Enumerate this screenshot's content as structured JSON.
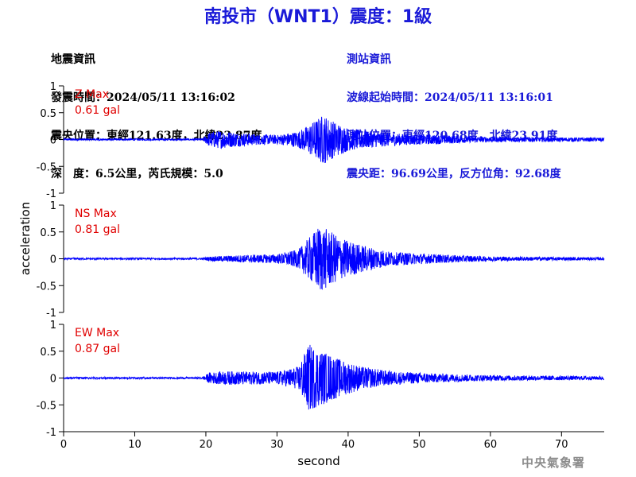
{
  "title": "南投市（WNT1）震度：1級",
  "info_left": {
    "heading": "地震資訊",
    "time": "發震時間：2024/05/11 13:16:02",
    "epicenter": "震央位置：東經121.63度，北緯23.87度",
    "depth_magnitude": "深　度：6.5公里，芮氏規模：5.0"
  },
  "info_right": {
    "heading": "測站資訊",
    "wave_start": "波線起始時間：2024/05/11 13:16:01",
    "station": "測站位置：東經120.68度，北緯23.91度",
    "distance": "震央距：96.69公里，反方位角：92.68度"
  },
  "agency": "中央氣象署",
  "colors": {
    "title": "#1a1ad8",
    "trace": "#0000ff",
    "max_label": "#e00000",
    "axis": "#000000"
  },
  "chart_data": {
    "type": "line",
    "xlabel": "second",
    "ylabel": "acceleration",
    "xlim": [
      0,
      76
    ],
    "ylim": [
      -1,
      1
    ],
    "x_ticks": [
      "0",
      "10",
      "20",
      "30",
      "40",
      "50",
      "60",
      "70"
    ],
    "y_ticks": [
      "1",
      "0.5",
      "0",
      "-0.5",
      "-1"
    ],
    "grid": false,
    "series": [
      {
        "name": "Z Max",
        "max_value": "0.61 gal",
        "envelope": [
          [
            0,
            0.02
          ],
          [
            19.5,
            0.02
          ],
          [
            20.5,
            0.16
          ],
          [
            22,
            0.2
          ],
          [
            24,
            0.16
          ],
          [
            27,
            0.12
          ],
          [
            30,
            0.1
          ],
          [
            33,
            0.18
          ],
          [
            35,
            0.38
          ],
          [
            36.5,
            0.55
          ],
          [
            38,
            0.4
          ],
          [
            40,
            0.25
          ],
          [
            43,
            0.18
          ],
          [
            48,
            0.12
          ],
          [
            53,
            0.1
          ],
          [
            58,
            0.06
          ],
          [
            65,
            0.05
          ],
          [
            76,
            0.04
          ]
        ]
      },
      {
        "name": "NS Max",
        "max_value": "0.81 gal",
        "envelope": [
          [
            0,
            0.02
          ],
          [
            19.5,
            0.02
          ],
          [
            20.5,
            0.05
          ],
          [
            25,
            0.08
          ],
          [
            30,
            0.1
          ],
          [
            33,
            0.2
          ],
          [
            35,
            0.55
          ],
          [
            36,
            0.75
          ],
          [
            37.5,
            0.6
          ],
          [
            39,
            0.45
          ],
          [
            42,
            0.3
          ],
          [
            46,
            0.15
          ],
          [
            52,
            0.1
          ],
          [
            60,
            0.05
          ],
          [
            76,
            0.03
          ]
        ]
      },
      {
        "name": "EW Max",
        "max_value": "0.87 gal",
        "envelope": [
          [
            0,
            0.02
          ],
          [
            19.5,
            0.02
          ],
          [
            20.5,
            0.12
          ],
          [
            23,
            0.15
          ],
          [
            27,
            0.14
          ],
          [
            30,
            0.14
          ],
          [
            33,
            0.25
          ],
          [
            34.5,
            0.75
          ],
          [
            35.5,
            0.65
          ],
          [
            37,
            0.55
          ],
          [
            39,
            0.4
          ],
          [
            42,
            0.25
          ],
          [
            46,
            0.15
          ],
          [
            52,
            0.1
          ],
          [
            60,
            0.06
          ],
          [
            76,
            0.04
          ]
        ]
      }
    ]
  }
}
